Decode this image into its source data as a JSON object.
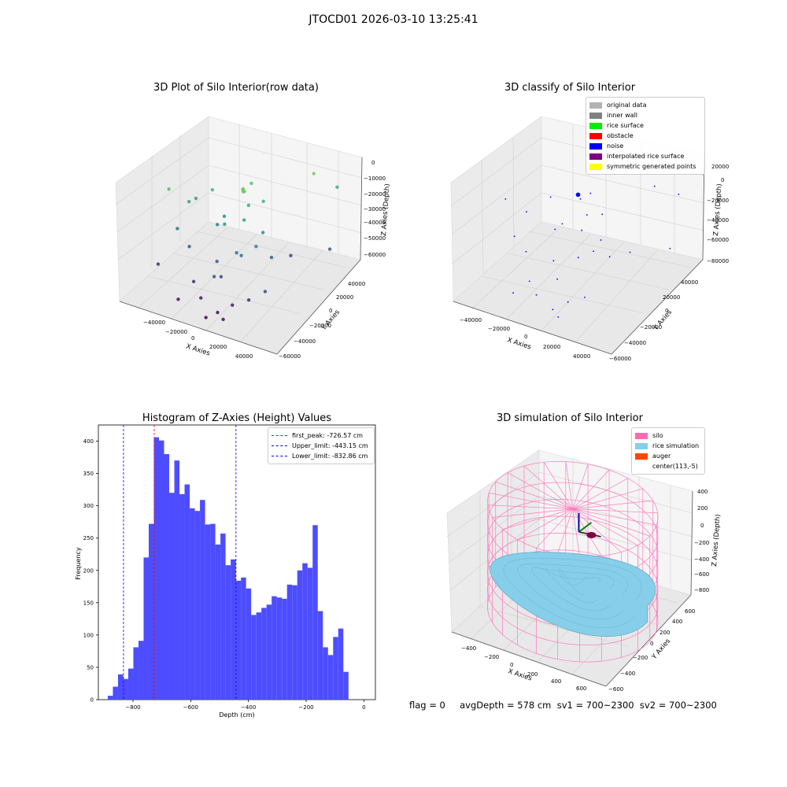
{
  "suptitle": "JTOCD01 2026-03-10 13:25:41",
  "status_text": "flag = 0     avgDepth = 578 cm  sv1 = 700~2300  sv2 = 700~2300",
  "panels": {
    "raw": {
      "title": "3D Plot of Silo Interior(row data)",
      "x_label": "X Axies",
      "y_label": "Y Axies",
      "z_label": "Z Axies (Depth)",
      "x_ticks": [
        "−40000",
        "−20000",
        "0",
        "20000",
        "40000"
      ],
      "y_ticks": [
        "−60000",
        "−40000",
        "−20000",
        "0",
        "20000",
        "40000"
      ],
      "z_ticks": [
        "−60000",
        "−50000",
        "−40000",
        "−30000",
        "−20000",
        "−10000",
        "0"
      ]
    },
    "classify": {
      "title": "3D classify of Silo Interior",
      "x_label": "X Axies",
      "y_label": "Y Axies",
      "z_label": "Z Axies (Depth)",
      "x_ticks": [
        "−40000",
        "−20000",
        "0",
        "20000",
        "40000"
      ],
      "y_ticks": [
        "−60000",
        "−40000",
        "−20000",
        "0",
        "20000",
        "40000"
      ],
      "z_ticks": [
        "−80000",
        "−60000",
        "−40000",
        "−20000",
        "0",
        "20000"
      ],
      "legend": [
        {
          "label": "original data",
          "color": "#b3b3b3"
        },
        {
          "label": "inner wall",
          "color": "#808080"
        },
        {
          "label": "rice surface",
          "color": "#00ee00"
        },
        {
          "label": "obstacle",
          "color": "#ff0000"
        },
        {
          "label": "noise",
          "color": "#0000ff"
        },
        {
          "label": "interpolated rice surface",
          "color": "#800080"
        },
        {
          "label": "symmetric generated points",
          "color": "#ffff00"
        }
      ]
    },
    "histogram": {
      "title": "Histogram of Z-Axies (Height) Values",
      "x_label": "Depth (cm)",
      "y_label": "Frequency",
      "legend": [
        {
          "label": "first_peak: -726.57 cm",
          "color": "#ff0000"
        },
        {
          "label": "Upper_limit: -443.15 cm",
          "color": "#0000ff"
        },
        {
          "label": "Lower_limit: -832.86 cm",
          "color": "#0000ff"
        }
      ]
    },
    "simulation": {
      "title": "3D simulation of Silo Interior",
      "x_label": "X Axies",
      "y_label": "Y Axies",
      "z_label": "Z Axies (Depth)",
      "x_ticks": [
        "−400",
        "−200",
        "0",
        "200",
        "400",
        "600"
      ],
      "y_ticks": [
        "−600",
        "−400",
        "−200",
        "0",
        "200",
        "400",
        "600"
      ],
      "z_ticks": [
        "−800",
        "−600",
        "−400",
        "−200",
        "0",
        "200",
        "400"
      ],
      "legend": [
        {
          "label": "silo",
          "color": "#ff69b4"
        },
        {
          "label": "rice simulation",
          "color": "#87ceeb"
        },
        {
          "label": "auger",
          "color": "#ff4500"
        },
        {
          "label": "center(113,-5)",
          "color": ""
        }
      ]
    }
  },
  "chart_data": [
    {
      "type": "scatter",
      "title": "3D Plot of Silo Interior(row data)",
      "xlabel": "X Axies",
      "ylabel": "Y Axies",
      "zlabel": "Z Axies (Depth)",
      "xlim": [
        -50000,
        50000
      ],
      "ylim": [
        -60000,
        50000
      ],
      "zlim": [
        -65000,
        5000
      ],
      "colormap": "viridis",
      "points_xyz": [
        [
          2000,
          -5000,
          -10000
        ],
        [
          2500,
          -6000,
          -10500
        ],
        [
          3000,
          -5500,
          -11000
        ],
        [
          1500,
          -4500,
          -10800
        ],
        [
          2200,
          -5200,
          -11500
        ],
        [
          -38000,
          -20000,
          -15000
        ],
        [
          -30000,
          -10000,
          -25000
        ],
        [
          -20000,
          0,
          -20000
        ],
        [
          0,
          10000,
          -15000
        ],
        [
          30000,
          30000,
          -10000
        ],
        [
          40000,
          40000,
          -20000
        ],
        [
          -35000,
          -15000,
          -40000
        ],
        [
          -25000,
          -20000,
          -45000
        ],
        [
          -10000,
          -5000,
          -30000
        ],
        [
          5000,
          -10000,
          -25000
        ],
        [
          10000,
          5000,
          -20000
        ],
        [
          15000,
          -15000,
          -35000
        ],
        [
          -5000,
          -25000,
          -45000
        ],
        [
          0,
          -30000,
          -50000
        ],
        [
          8000,
          -20000,
          -40000
        ],
        [
          20000,
          -5000,
          -45000
        ],
        [
          25000,
          10000,
          -50000
        ],
        [
          45000,
          20000,
          -45000
        ],
        [
          -40000,
          -30000,
          -55000
        ],
        [
          -15000,
          -35000,
          -55000
        ],
        [
          -8000,
          -40000,
          -60000
        ],
        [
          5000,
          -45000,
          -62000
        ],
        [
          12000,
          -40000,
          -58000
        ],
        [
          20000,
          -35000,
          -55000
        ],
        [
          28000,
          -30000,
          -50000
        ],
        [
          -20000,
          -45000,
          -62000
        ],
        [
          0,
          -50000,
          -64000
        ],
        [
          10000,
          -48000,
          -63000
        ],
        [
          -5000,
          -15000,
          -28000
        ],
        [
          3000,
          0,
          -22000
        ],
        [
          -12000,
          -10000,
          -33000
        ],
        [
          16000,
          -8000,
          -30000
        ],
        [
          -28000,
          -5000,
          -25000
        ],
        [
          6000,
          -22000,
          -38000
        ],
        [
          -2000,
          -35000,
          -48000
        ]
      ]
    },
    {
      "type": "scatter",
      "title": "3D classify of Silo Interior",
      "xlabel": "X Axies",
      "ylabel": "Y Axies",
      "zlabel": "Z Axies (Depth)",
      "xlim": [
        -50000,
        50000
      ],
      "ylim": [
        -60000,
        50000
      ],
      "zlim": [
        -85000,
        25000
      ],
      "series": [
        {
          "name": "noise",
          "color": "#0000ff",
          "points_xyz": [
            [
              0,
              -5000,
              -10000
            ],
            [
              500,
              -5500,
              -10500
            ],
            [
              -500,
              -4800,
              -11000
            ],
            [
              2000,
              -6000,
              -12000
            ],
            [
              -38000,
              -20000,
              -20000
            ],
            [
              -30000,
              -10000,
              -35000
            ],
            [
              -20000,
              0,
              -25000
            ],
            [
              0,
              10000,
              -20000
            ],
            [
              30000,
              30000,
              -15000
            ],
            [
              40000,
              40000,
              -25000
            ],
            [
              -35000,
              -15000,
              -55000
            ],
            [
              -25000,
              -20000,
              -60000
            ],
            [
              -10000,
              -5000,
              -40000
            ],
            [
              5000,
              -10000,
              -35000
            ],
            [
              10000,
              5000,
              -30000
            ],
            [
              15000,
              -15000,
              -45000
            ],
            [
              -5000,
              -25000,
              -55000
            ],
            [
              0,
              -30000,
              -65000
            ],
            [
              8000,
              -20000,
              -50000
            ],
            [
              20000,
              -5000,
              -55000
            ],
            [
              25000,
              10000,
              -60000
            ],
            [
              45000,
              20000,
              -55000
            ],
            [
              -15000,
              -35000,
              -70000
            ],
            [
              -8000,
              -40000,
              -75000
            ],
            [
              5000,
              -45000,
              -78000
            ],
            [
              12000,
              -40000,
              -72000
            ],
            [
              20000,
              -35000,
              -68000
            ],
            [
              -20000,
              -45000,
              -75000
            ],
            [
              10000,
              -48000,
              -80000
            ],
            [
              3000,
              0,
              -30000
            ],
            [
              -12000,
              -10000,
              -42000
            ],
            [
              16000,
              -8000,
              -40000
            ]
          ]
        }
      ]
    },
    {
      "type": "bar",
      "title": "Histogram of Z-Axies (Height) Values",
      "xlabel": "Depth (cm)",
      "ylabel": "Frequency",
      "xlim": [
        -920,
        40
      ],
      "ylim": [
        0,
        425
      ],
      "bin_start": -887.5,
      "bin_width": 17.75,
      "values": [
        6,
        20,
        39,
        32,
        48,
        81,
        91,
        220,
        272,
        406,
        401,
        380,
        320,
        370,
        318,
        333,
        296,
        292,
        309,
        271,
        272,
        240,
        257,
        208,
        217,
        184,
        189,
        172,
        131,
        135,
        142,
        147,
        160,
        158,
        156,
        178,
        177,
        200,
        211,
        204,
        270,
        137,
        81,
        69,
        97,
        110,
        43
      ],
      "vlines": [
        {
          "name": "first_peak: -726.57 cm",
          "x": -726.57,
          "color": "#ff0000"
        },
        {
          "name": "Upper_limit: -443.15 cm",
          "x": -443.15,
          "color": "#0000ff"
        },
        {
          "name": "Lower_limit: -832.86 cm",
          "x": -832.86,
          "color": "#0000ff"
        }
      ],
      "x_ticks": [
        -800,
        -600,
        -400,
        -200,
        0
      ],
      "y_ticks": [
        0,
        50,
        100,
        150,
        200,
        250,
        300,
        350,
        400
      ],
      "legend_position": "top-right",
      "color": "#4d4dff"
    },
    {
      "type": "surface",
      "title": "3D simulation of Silo Interior",
      "xlabel": "X Axies",
      "ylabel": "Y Axies",
      "zlabel": "Z Axies (Depth)",
      "xlim": [
        -500,
        700
      ],
      "ylim": [
        -700,
        700
      ],
      "zlim": [
        -900,
        500
      ],
      "silo_radius": 600,
      "silo_z_range": [
        -900,
        350
      ],
      "center": [
        113,
        -5
      ],
      "colors": {
        "silo": "#ff69b4",
        "rice": "#87ceeb",
        "auger": "#ff4500"
      }
    }
  ]
}
